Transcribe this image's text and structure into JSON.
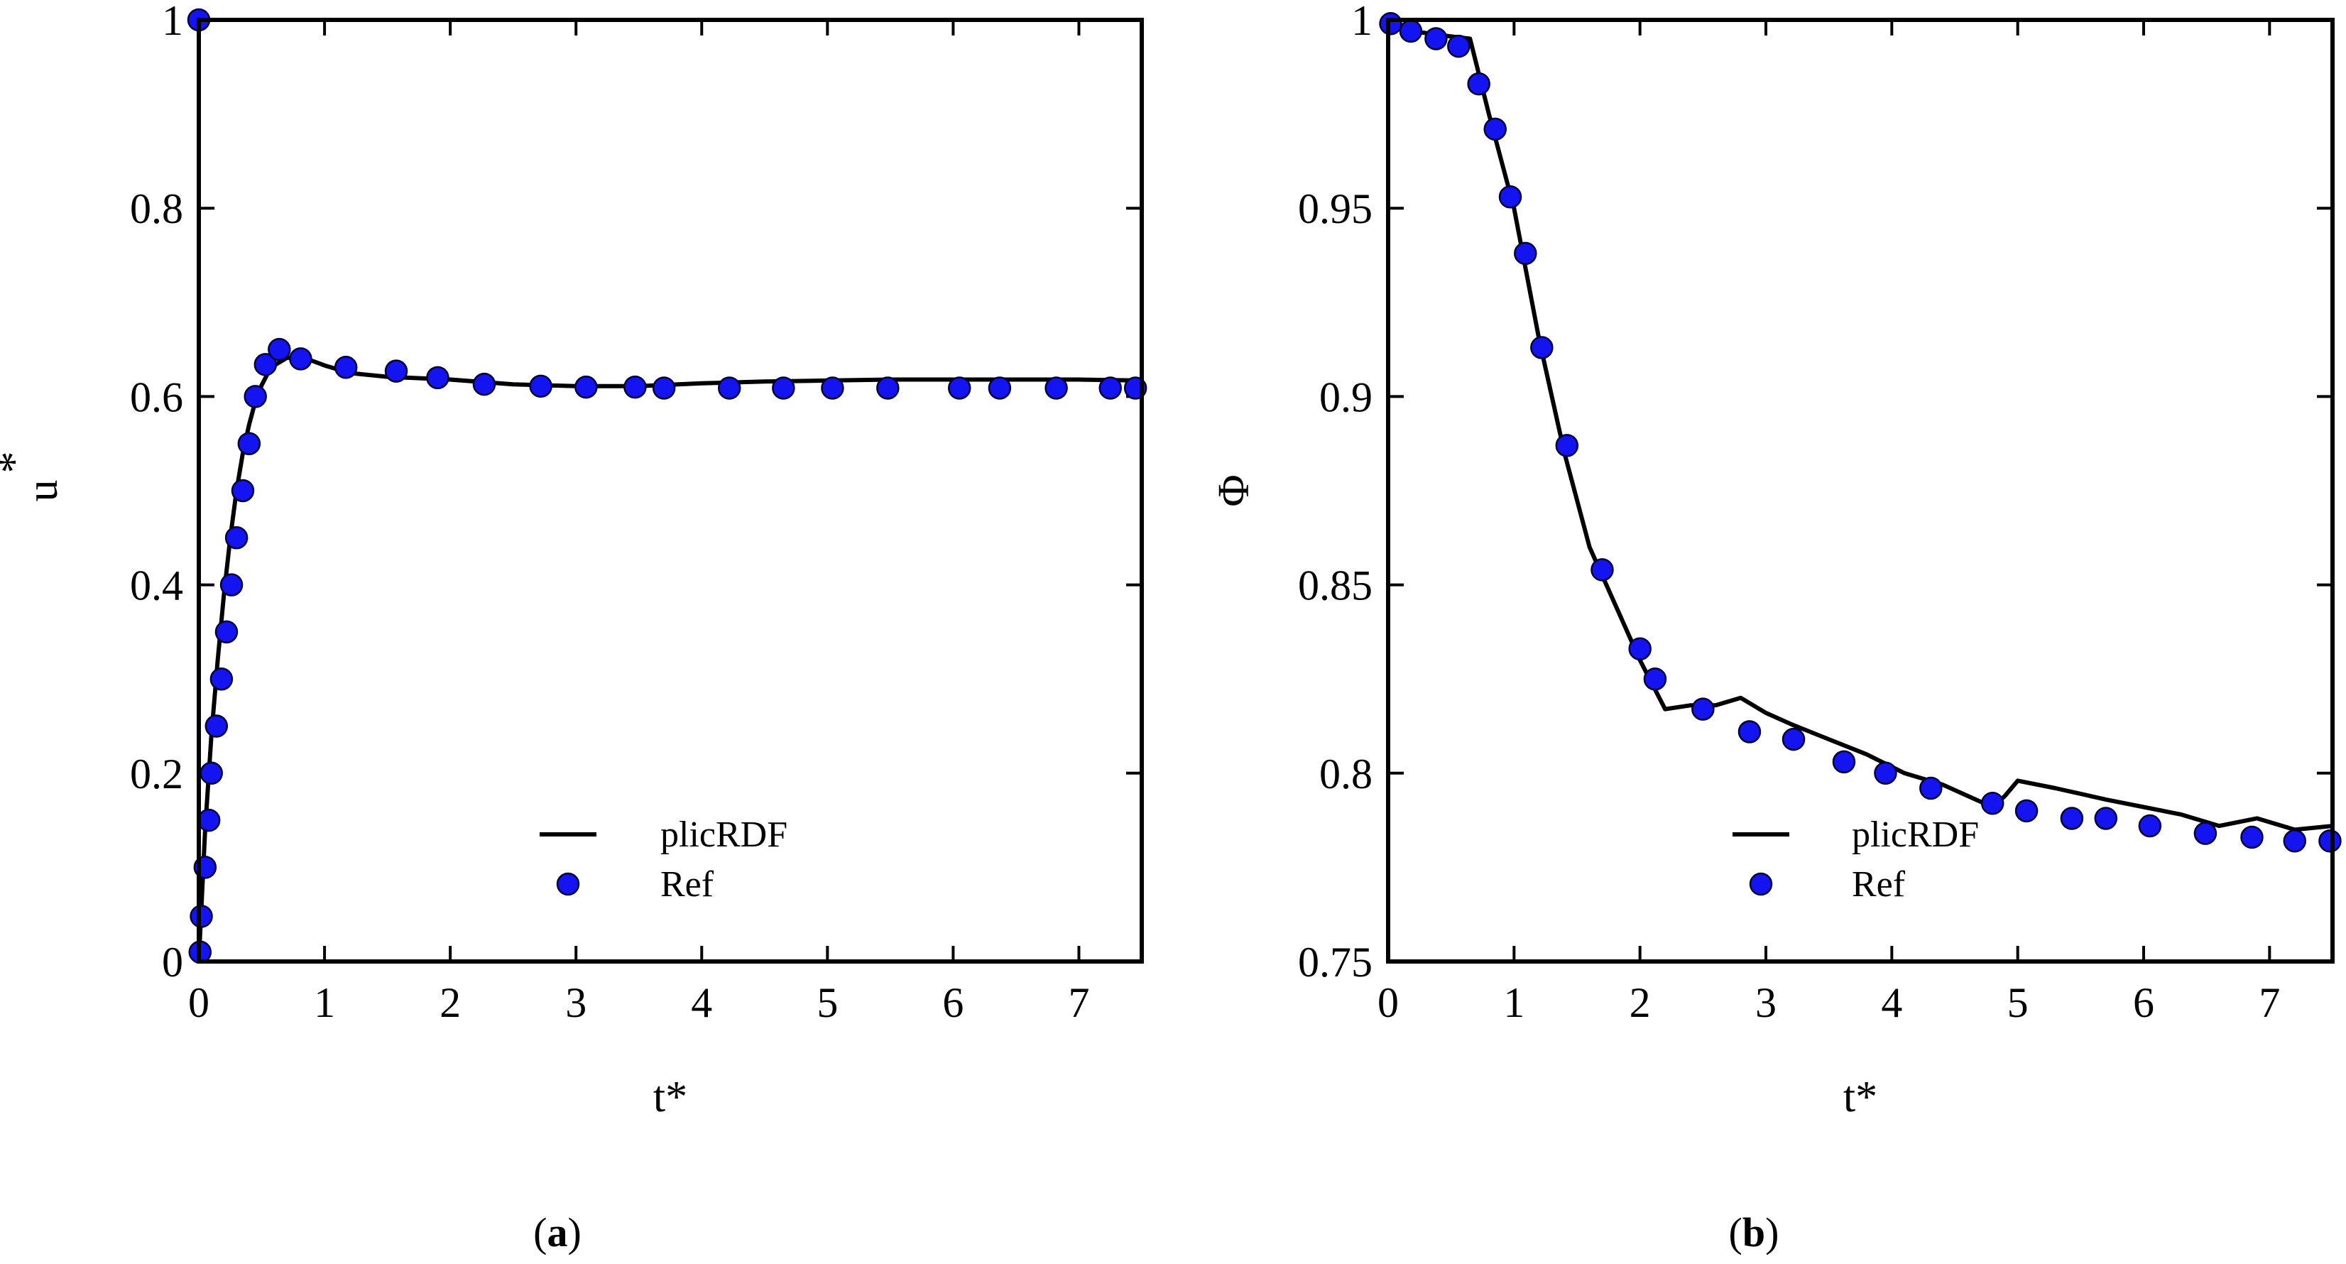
{
  "figure": {
    "captions": [
      "(a)",
      "(b)"
    ],
    "caption_letters": [
      "a",
      "b"
    ]
  },
  "colors": {
    "line": "#000000",
    "marker_fill": "#1414f0",
    "marker_stroke": "#000033",
    "axis": "#000000"
  },
  "chart_data": [
    {
      "type": "line",
      "panel": "a",
      "xlabel": "t*",
      "ylabel": "u",
      "ylabel_superscript": "*",
      "xlim": [
        0,
        7.5
      ],
      "ylim": [
        0,
        1
      ],
      "xticks": [
        0,
        1,
        2,
        3,
        4,
        5,
        6,
        7
      ],
      "xtick_labels": [
        "0",
        "1",
        "2",
        "3",
        "4",
        "5",
        "6",
        "7"
      ],
      "yticks": [
        0,
        0.2,
        0.4,
        0.6,
        0.8,
        1
      ],
      "ytick_labels": [
        "0",
        "0.2",
        "0.4",
        "0.6",
        "0.8",
        "1"
      ],
      "legend_position": "bottom-center",
      "series": [
        {
          "name": "plicRDF",
          "style": "line",
          "x": [
            0,
            0.05,
            0.1,
            0.15,
            0.2,
            0.25,
            0.3,
            0.35,
            0.4,
            0.45,
            0.5,
            0.55,
            0.6,
            0.7,
            0.8,
            0.9,
            1.0,
            1.2,
            1.5,
            2.0,
            2.5,
            3.0,
            3.5,
            4.0,
            4.5,
            5.0,
            5.5,
            6.0,
            6.5,
            7.0,
            7.5
          ],
          "y": [
            0,
            0.14,
            0.24,
            0.32,
            0.39,
            0.45,
            0.5,
            0.54,
            0.57,
            0.595,
            0.612,
            0.625,
            0.633,
            0.641,
            0.642,
            0.638,
            0.633,
            0.625,
            0.621,
            0.618,
            0.613,
            0.611,
            0.611,
            0.614,
            0.616,
            0.617,
            0.618,
            0.618,
            0.618,
            0.618,
            0.617
          ]
        },
        {
          "name": "Ref",
          "style": "marker",
          "x": [
            0.0,
            0.01,
            0.02,
            0.05,
            0.08,
            0.1,
            0.14,
            0.18,
            0.22,
            0.26,
            0.3,
            0.35,
            0.4,
            0.45,
            0.53,
            0.64,
            0.81,
            1.17,
            1.57,
            1.9,
            2.27,
            2.72,
            3.08,
            3.47,
            3.7,
            4.22,
            4.65,
            5.04,
            5.48,
            6.05,
            6.37,
            6.82,
            7.25,
            7.45
          ],
          "y": [
            1.0,
            0.01,
            0.048,
            0.1,
            0.15,
            0.2,
            0.25,
            0.3,
            0.35,
            0.4,
            0.45,
            0.5,
            0.55,
            0.6,
            0.634,
            0.65,
            0.64,
            0.631,
            0.627,
            0.62,
            0.613,
            0.611,
            0.61,
            0.61,
            0.609,
            0.609,
            0.609,
            0.609,
            0.609,
            0.609,
            0.609,
            0.609,
            0.609,
            0.609
          ]
        }
      ]
    },
    {
      "type": "line",
      "panel": "b",
      "xlabel": "t*",
      "ylabel": "Φ",
      "ylabel_superscript": "",
      "xlim": [
        0,
        7.5
      ],
      "ylim": [
        0.75,
        1
      ],
      "xticks": [
        0,
        1,
        2,
        3,
        4,
        5,
        6,
        7
      ],
      "xtick_labels": [
        "0",
        "1",
        "2",
        "3",
        "4",
        "5",
        "6",
        "7"
      ],
      "yticks": [
        0.75,
        0.8,
        0.85,
        0.9,
        0.95,
        1
      ],
      "ytick_labels": [
        "0.75",
        "0.8",
        "0.85",
        "0.9",
        "0.95",
        "1"
      ],
      "legend_position": "bottom-center",
      "series": [
        {
          "name": "plicRDF",
          "style": "line",
          "x": [
            0,
            0.2,
            0.4,
            0.65,
            0.8,
            1.0,
            1.2,
            1.4,
            1.6,
            1.8,
            2.0,
            2.2,
            2.4,
            2.6,
            2.8,
            3.0,
            3.2,
            3.5,
            3.8,
            4.1,
            4.4,
            4.6,
            4.8,
            4.9,
            5.0,
            5.3,
            5.7,
            6.0,
            6.3,
            6.6,
            6.9,
            7.2,
            7.5
          ],
          "y": [
            1.0,
            0.997,
            0.996,
            0.995,
            0.975,
            0.95,
            0.915,
            0.885,
            0.86,
            0.845,
            0.83,
            0.817,
            0.818,
            0.818,
            0.82,
            0.816,
            0.813,
            0.809,
            0.805,
            0.8,
            0.797,
            0.794,
            0.791,
            0.794,
            0.798,
            0.796,
            0.793,
            0.791,
            0.789,
            0.786,
            0.788,
            0.785,
            0.786
          ]
        },
        {
          "name": "Ref",
          "style": "marker",
          "x": [
            0.02,
            0.18,
            0.38,
            0.56,
            0.72,
            0.85,
            0.97,
            1.09,
            1.22,
            1.42,
            1.7,
            2.0,
            2.12,
            2.5,
            2.87,
            3.22,
            3.62,
            3.95,
            4.31,
            4.8,
            5.07,
            5.43,
            5.7,
            6.05,
            6.49,
            6.86,
            7.2,
            7.48
          ],
          "y": [
            0.999,
            0.997,
            0.995,
            0.993,
            0.983,
            0.971,
            0.953,
            0.938,
            0.913,
            0.887,
            0.854,
            0.833,
            0.825,
            0.817,
            0.811,
            0.809,
            0.803,
            0.8,
            0.796,
            0.792,
            0.79,
            0.788,
            0.788,
            0.786,
            0.784,
            0.783,
            0.782,
            0.782
          ]
        }
      ]
    }
  ]
}
